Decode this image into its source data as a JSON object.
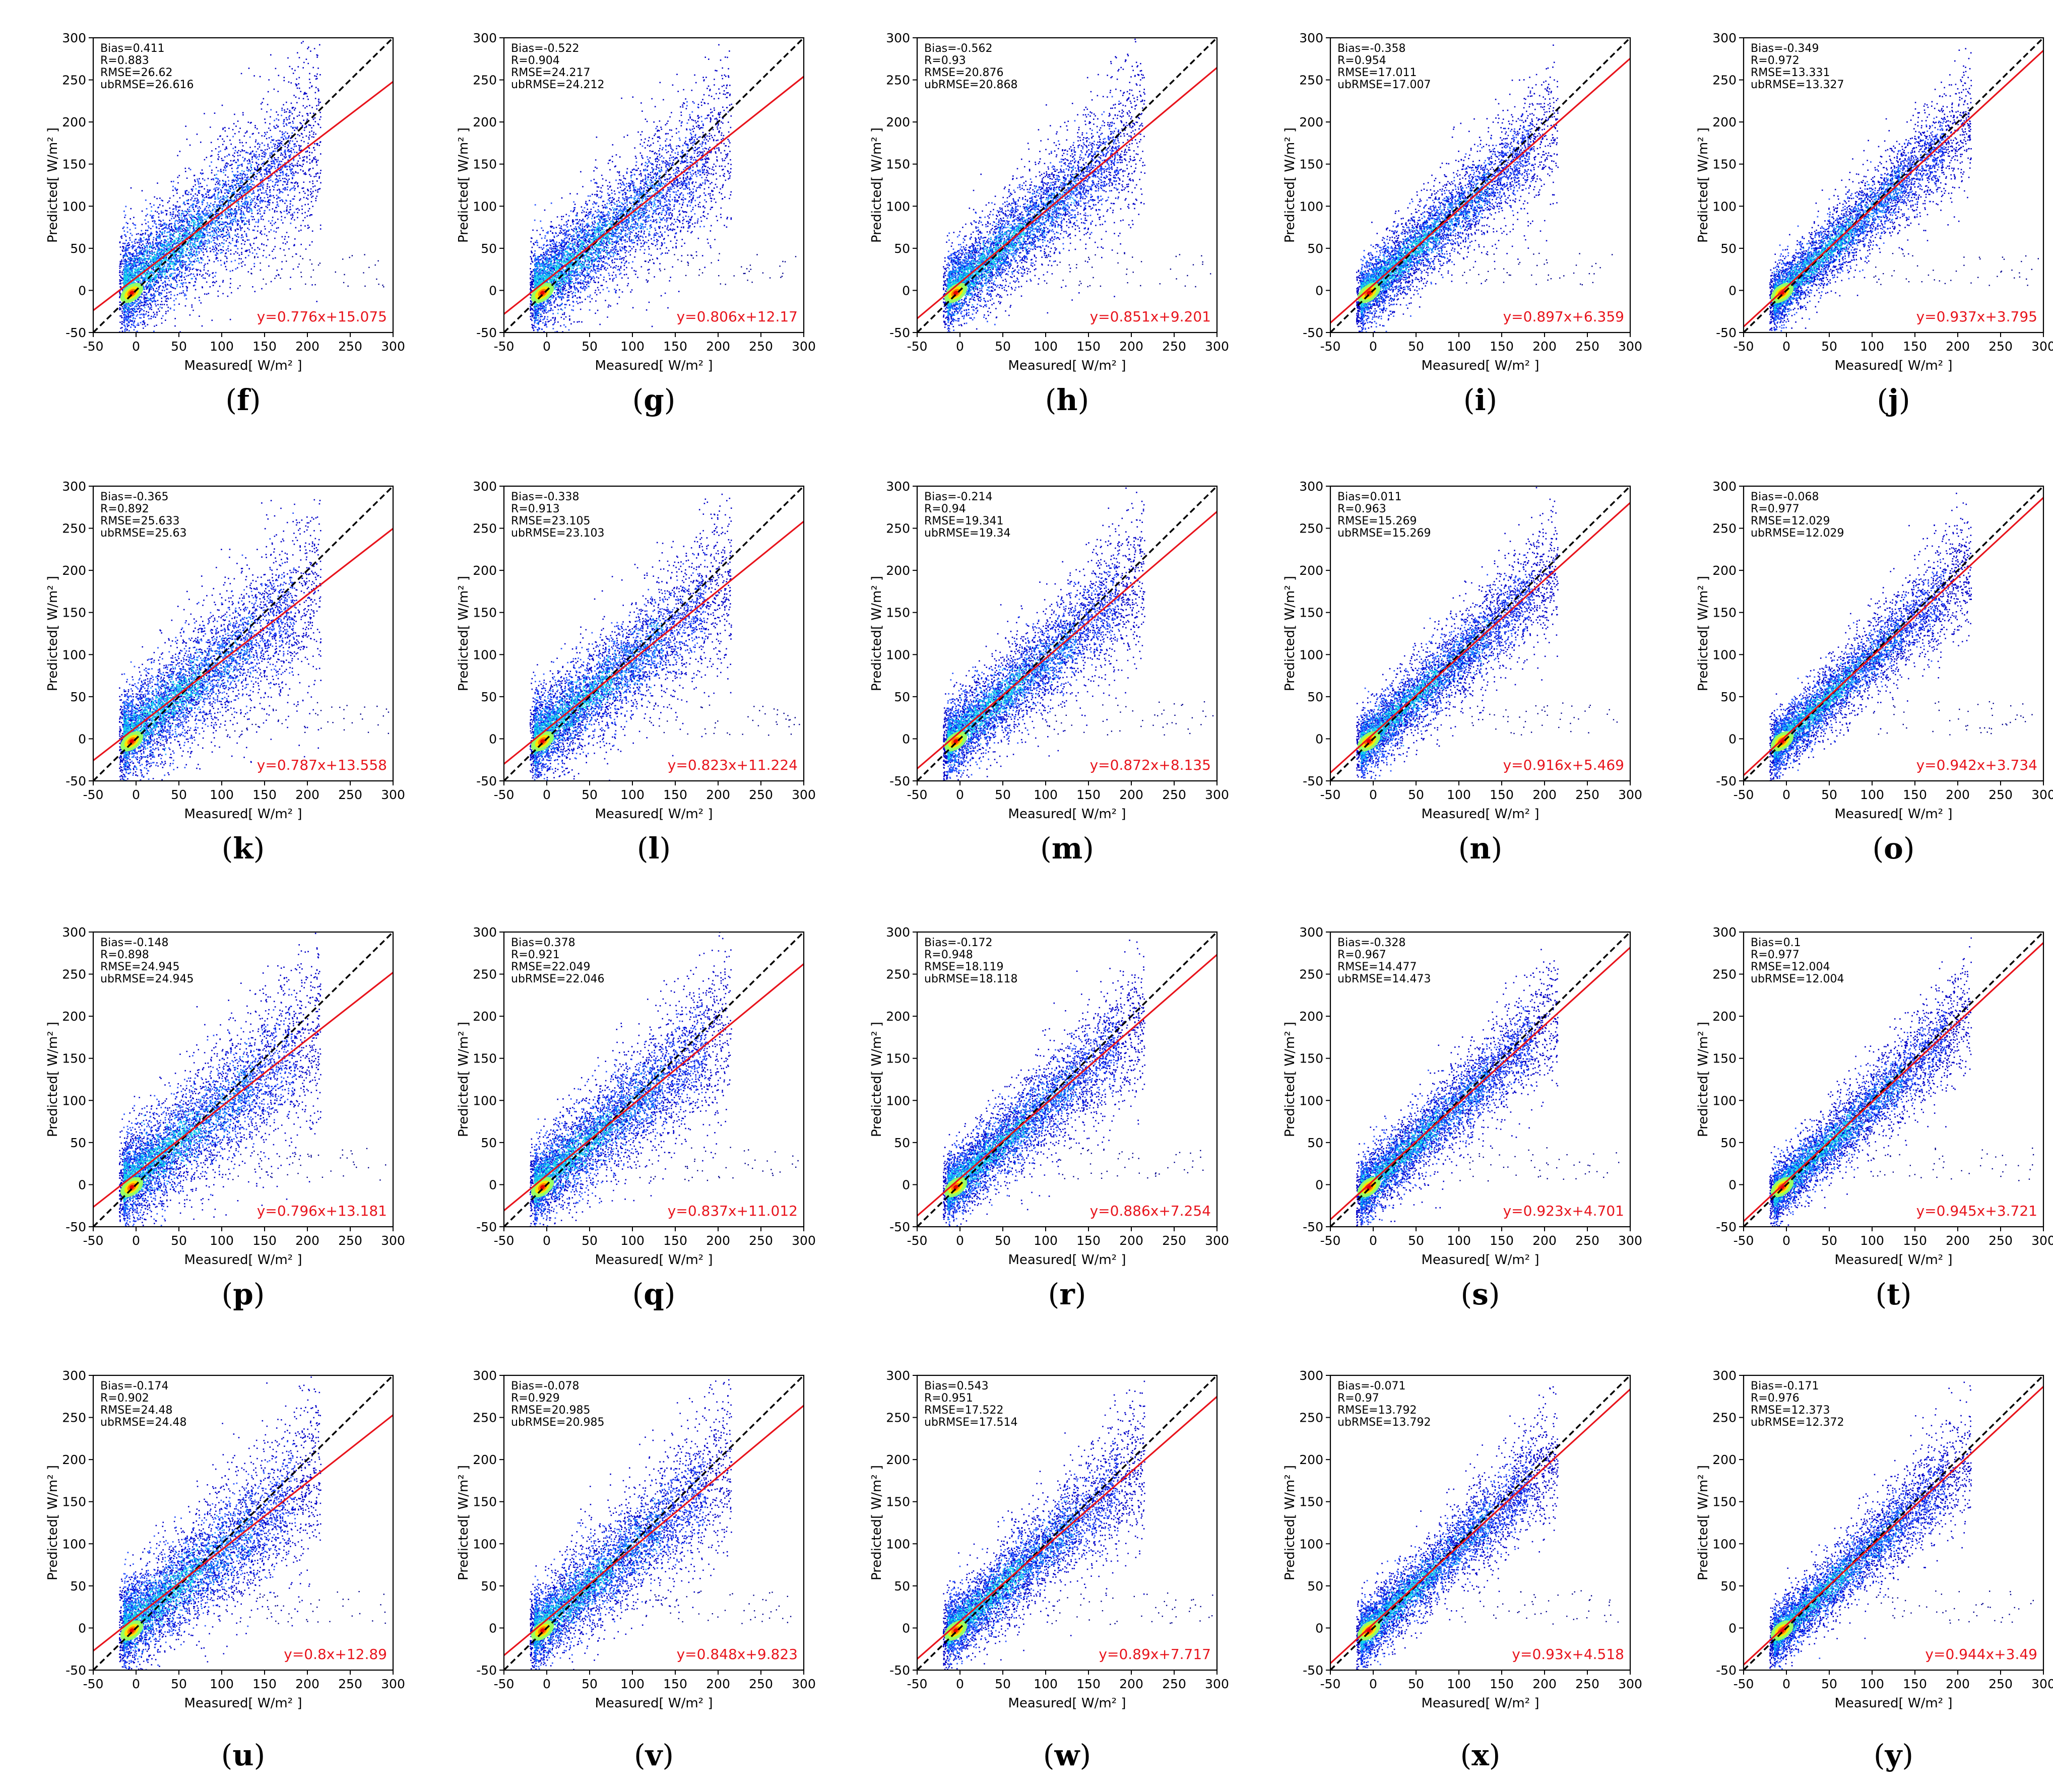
{
  "colors": {
    "fit_line": "#e8141c",
    "identity_line": "#000000",
    "equation_text": "#e8141c",
    "sparse_points": "#00008b",
    "density_scale": [
      "#00006e",
      "#0000c8",
      "#0a3cff",
      "#0096ff",
      "#14e6e6",
      "#96ff64",
      "#ffe600",
      "#ff7800",
      "#e60000"
    ]
  },
  "chart_data": [
    {
      "type": "scatter",
      "panel_label": "f",
      "xlabel": "Measured[",
      "ylabel": "Predicted[",
      "unit": "W/m²",
      "closing_bracket": "]",
      "xlim": [
        -50,
        300
      ],
      "ylim": [
        -50,
        300
      ],
      "ticks": [
        -50,
        0,
        50,
        100,
        150,
        200,
        250,
        300
      ],
      "stats": [
        "Bias=0.411",
        "R=0.883",
        "RMSE=26.62",
        "ubRMSE=26.616"
      ],
      "equation": "y=0.776x+15.075",
      "fit": {
        "slope": 0.776,
        "intercept": 15.075
      },
      "identity_line": true
    },
    {
      "type": "scatter",
      "panel_label": "g",
      "xlabel": "Measured[",
      "ylabel": "Predicted[",
      "unit": "W/m²",
      "closing_bracket": "]",
      "xlim": [
        -50,
        300
      ],
      "ylim": [
        -50,
        300
      ],
      "ticks": [
        -50,
        0,
        50,
        100,
        150,
        200,
        250,
        300
      ],
      "stats": [
        "Bias=-0.522",
        "R=0.904",
        "RMSE=24.217",
        "ubRMSE=24.212"
      ],
      "equation": "y=0.806x+12.17",
      "fit": {
        "slope": 0.806,
        "intercept": 12.17
      },
      "identity_line": true
    },
    {
      "type": "scatter",
      "panel_label": "h",
      "xlabel": "Measured[",
      "ylabel": "Predicted[",
      "unit": "W/m²",
      "closing_bracket": "]",
      "xlim": [
        -50,
        300
      ],
      "ylim": [
        -50,
        300
      ],
      "ticks": [
        -50,
        0,
        50,
        100,
        150,
        200,
        250,
        300
      ],
      "stats": [
        "Bias=-0.562",
        "R=0.93",
        "RMSE=20.876",
        "ubRMSE=20.868"
      ],
      "equation": "y=0.851x+9.201",
      "fit": {
        "slope": 0.851,
        "intercept": 9.201
      },
      "identity_line": true
    },
    {
      "type": "scatter",
      "panel_label": "i",
      "xlabel": "Measured[",
      "ylabel": "Predicted[",
      "unit": "W/m²",
      "closing_bracket": "]",
      "xlim": [
        -50,
        300
      ],
      "ylim": [
        -50,
        300
      ],
      "ticks": [
        -50,
        0,
        50,
        100,
        150,
        200,
        250,
        300
      ],
      "stats": [
        "Bias=-0.358",
        "R=0.954",
        "RMSE=17.011",
        "ubRMSE=17.007"
      ],
      "equation": "y=0.897x+6.359",
      "fit": {
        "slope": 0.897,
        "intercept": 6.359
      },
      "identity_line": true
    },
    {
      "type": "scatter",
      "panel_label": "j",
      "xlabel": "Measured[",
      "ylabel": "Predicted[",
      "unit": "W/m²",
      "closing_bracket": "]",
      "xlim": [
        -50,
        300
      ],
      "ylim": [
        -50,
        300
      ],
      "ticks": [
        -50,
        0,
        50,
        100,
        150,
        200,
        250,
        300
      ],
      "stats": [
        "Bias=-0.349",
        "R=0.972",
        "RMSE=13.331",
        "ubRMSE=13.327"
      ],
      "equation": "y=0.937x+3.795",
      "fit": {
        "slope": 0.937,
        "intercept": 3.795
      },
      "identity_line": true
    },
    {
      "type": "scatter",
      "panel_label": "k",
      "xlabel": "Measured[",
      "ylabel": "Predicted[",
      "unit": "W/m²",
      "closing_bracket": "]",
      "xlim": [
        -50,
        300
      ],
      "ylim": [
        -50,
        300
      ],
      "ticks": [
        -50,
        0,
        50,
        100,
        150,
        200,
        250,
        300
      ],
      "stats": [
        "Bias=-0.365",
        "R=0.892",
        "RMSE=25.633",
        "ubRMSE=25.63"
      ],
      "equation": "y=0.787x+13.558",
      "fit": {
        "slope": 0.787,
        "intercept": 13.558
      },
      "identity_line": true
    },
    {
      "type": "scatter",
      "panel_label": "l",
      "xlabel": "Measured[",
      "ylabel": "Predicted[",
      "unit": "W/m²",
      "closing_bracket": "]",
      "xlim": [
        -50,
        300
      ],
      "ylim": [
        -50,
        300
      ],
      "ticks": [
        -50,
        0,
        50,
        100,
        150,
        200,
        250,
        300
      ],
      "stats": [
        "Bias=-0.338",
        "R=0.913",
        "RMSE=23.105",
        "ubRMSE=23.103"
      ],
      "equation": "y=0.823x+11.224",
      "fit": {
        "slope": 0.823,
        "intercept": 11.224
      },
      "identity_line": true
    },
    {
      "type": "scatter",
      "panel_label": "m",
      "xlabel": "Measured[",
      "ylabel": "Predicted[",
      "unit": "W/m²",
      "closing_bracket": "]",
      "xlim": [
        -50,
        300
      ],
      "ylim": [
        -50,
        300
      ],
      "ticks": [
        -50,
        0,
        50,
        100,
        150,
        200,
        250,
        300
      ],
      "stats": [
        "Bias=-0.214",
        "R=0.94",
        "RMSE=19.341",
        "ubRMSE=19.34"
      ],
      "equation": "y=0.872x+8.135",
      "fit": {
        "slope": 0.872,
        "intercept": 8.135
      },
      "identity_line": true
    },
    {
      "type": "scatter",
      "panel_label": "n",
      "xlabel": "Measured[",
      "ylabel": "Predicted[",
      "unit": "W/m²",
      "closing_bracket": "]",
      "xlim": [
        -50,
        300
      ],
      "ylim": [
        -50,
        300
      ],
      "ticks": [
        -50,
        0,
        50,
        100,
        150,
        200,
        250,
        300
      ],
      "stats": [
        "Bias=0.011",
        "R=0.963",
        "RMSE=15.269",
        "ubRMSE=15.269"
      ],
      "equation": "y=0.916x+5.469",
      "fit": {
        "slope": 0.916,
        "intercept": 5.469
      },
      "identity_line": true
    },
    {
      "type": "scatter",
      "panel_label": "o",
      "xlabel": "Measured[",
      "ylabel": "Predicted[",
      "unit": "W/m²",
      "closing_bracket": "]",
      "xlim": [
        -50,
        300
      ],
      "ylim": [
        -50,
        300
      ],
      "ticks": [
        -50,
        0,
        50,
        100,
        150,
        200,
        250,
        300
      ],
      "stats": [
        "Bias=-0.068",
        "R=0.977",
        "RMSE=12.029",
        "ubRMSE=12.029"
      ],
      "equation": "y=0.942x+3.734",
      "fit": {
        "slope": 0.942,
        "intercept": 3.734
      },
      "identity_line": true
    },
    {
      "type": "scatter",
      "panel_label": "p",
      "xlabel": "Measured[",
      "ylabel": "Predicted[",
      "unit": "W/m²",
      "closing_bracket": "]",
      "xlim": [
        -50,
        300
      ],
      "ylim": [
        -50,
        300
      ],
      "ticks": [
        -50,
        0,
        50,
        100,
        150,
        200,
        250,
        300
      ],
      "stats": [
        "Bias=-0.148",
        "R=0.898",
        "RMSE=24.945",
        "ubRMSE=24.945"
      ],
      "equation": "y=0.796x+13.181",
      "fit": {
        "slope": 0.796,
        "intercept": 13.181
      },
      "identity_line": true
    },
    {
      "type": "scatter",
      "panel_label": "q",
      "xlabel": "Measured[",
      "ylabel": "Predicted[",
      "unit": "W/m²",
      "closing_bracket": "]",
      "xlim": [
        -50,
        300
      ],
      "ylim": [
        -50,
        300
      ],
      "ticks": [
        -50,
        0,
        50,
        100,
        150,
        200,
        250,
        300
      ],
      "stats": [
        "Bias=0.378",
        "R=0.921",
        "RMSE=22.049",
        "ubRMSE=22.046"
      ],
      "equation": "y=0.837x+11.012",
      "fit": {
        "slope": 0.837,
        "intercept": 11.012
      },
      "identity_line": true
    },
    {
      "type": "scatter",
      "panel_label": "r",
      "xlabel": "Measured[",
      "ylabel": "Predicted[",
      "unit": "W/m²",
      "closing_bracket": "]",
      "xlim": [
        -50,
        300
      ],
      "ylim": [
        -50,
        300
      ],
      "ticks": [
        -50,
        0,
        50,
        100,
        150,
        200,
        250,
        300
      ],
      "stats": [
        "Bias=-0.172",
        "R=0.948",
        "RMSE=18.119",
        "ubRMSE=18.118"
      ],
      "equation": "y=0.886x+7.254",
      "fit": {
        "slope": 0.886,
        "intercept": 7.254
      },
      "identity_line": true
    },
    {
      "type": "scatter",
      "panel_label": "s",
      "xlabel": "Measured[",
      "ylabel": "Predicted[",
      "unit": "W/m²",
      "closing_bracket": "]",
      "xlim": [
        -50,
        300
      ],
      "ylim": [
        -50,
        300
      ],
      "ticks": [
        -50,
        0,
        50,
        100,
        150,
        200,
        250,
        300
      ],
      "stats": [
        "Bias=-0.328",
        "R=0.967",
        "RMSE=14.477",
        "ubRMSE=14.473"
      ],
      "equation": "y=0.923x+4.701",
      "fit": {
        "slope": 0.923,
        "intercept": 4.701
      },
      "identity_line": true
    },
    {
      "type": "scatter",
      "panel_label": "t",
      "xlabel": "Measured[",
      "ylabel": "Predicted[",
      "unit": "W/m²",
      "closing_bracket": "]",
      "xlim": [
        -50,
        300
      ],
      "ylim": [
        -50,
        300
      ],
      "ticks": [
        -50,
        0,
        50,
        100,
        150,
        200,
        250,
        300
      ],
      "stats": [
        "Bias=0.1",
        "R=0.977",
        "RMSE=12.004",
        "ubRMSE=12.004"
      ],
      "equation": "y=0.945x+3.721",
      "fit": {
        "slope": 0.945,
        "intercept": 3.721
      },
      "identity_line": true
    },
    {
      "type": "scatter",
      "panel_label": "u",
      "xlabel": "Measured[",
      "ylabel": "Predicted[",
      "unit": "W/m²",
      "closing_bracket": "]",
      "xlim": [
        -50,
        300
      ],
      "ylim": [
        -50,
        300
      ],
      "ticks": [
        -50,
        0,
        50,
        100,
        150,
        200,
        250,
        300
      ],
      "stats": [
        "Bias=-0.174",
        "R=0.902",
        "RMSE=24.48",
        "ubRMSE=24.48"
      ],
      "equation": "y=0.8x+12.89",
      "fit": {
        "slope": 0.8,
        "intercept": 12.89
      },
      "identity_line": true
    },
    {
      "type": "scatter",
      "panel_label": "v",
      "xlabel": "Measured[",
      "ylabel": "Predicted[",
      "unit": "W/m²",
      "closing_bracket": "]",
      "xlim": [
        -50,
        300
      ],
      "ylim": [
        -50,
        300
      ],
      "ticks": [
        -50,
        0,
        50,
        100,
        150,
        200,
        250,
        300
      ],
      "stats": [
        "Bias=-0.078",
        "R=0.929",
        "RMSE=20.985",
        "ubRMSE=20.985"
      ],
      "equation": "y=0.848x+9.823",
      "fit": {
        "slope": 0.848,
        "intercept": 9.823
      },
      "identity_line": true
    },
    {
      "type": "scatter",
      "panel_label": "w",
      "xlabel": "Measured[",
      "ylabel": "Predicted[",
      "unit": "W/m²",
      "closing_bracket": "]",
      "xlim": [
        -50,
        300
      ],
      "ylim": [
        -50,
        300
      ],
      "ticks": [
        -50,
        0,
        50,
        100,
        150,
        200,
        250,
        300
      ],
      "stats": [
        "Bias=0.543",
        "R=0.951",
        "RMSE=17.522",
        "ubRMSE=17.514"
      ],
      "equation": "y=0.89x+7.717",
      "fit": {
        "slope": 0.89,
        "intercept": 7.717
      },
      "identity_line": true
    },
    {
      "type": "scatter",
      "panel_label": "x",
      "xlabel": "Measured[",
      "ylabel": "Predicted[",
      "unit": "W/m²",
      "closing_bracket": "]",
      "xlim": [
        -50,
        300
      ],
      "ylim": [
        -50,
        300
      ],
      "ticks": [
        -50,
        0,
        50,
        100,
        150,
        200,
        250,
        300
      ],
      "stats": [
        "Bias=-0.071",
        "R=0.97",
        "RMSE=13.792",
        "ubRMSE=13.792"
      ],
      "equation": "y=0.93x+4.518",
      "fit": {
        "slope": 0.93,
        "intercept": 4.518
      },
      "identity_line": true
    },
    {
      "type": "scatter",
      "panel_label": "y",
      "xlabel": "Measured[",
      "ylabel": "Predicted[",
      "unit": "W/m²",
      "closing_bracket": "]",
      "xlim": [
        -50,
        300
      ],
      "ylim": [
        -50,
        300
      ],
      "ticks": [
        -50,
        0,
        50,
        100,
        150,
        200,
        250,
        300
      ],
      "stats": [
        "Bias=-0.171",
        "R=0.976",
        "RMSE=12.373",
        "ubRMSE=12.372"
      ],
      "equation": "y=0.944x+3.49",
      "fit": {
        "slope": 0.944,
        "intercept": 3.49
      },
      "identity_line": true
    }
  ]
}
